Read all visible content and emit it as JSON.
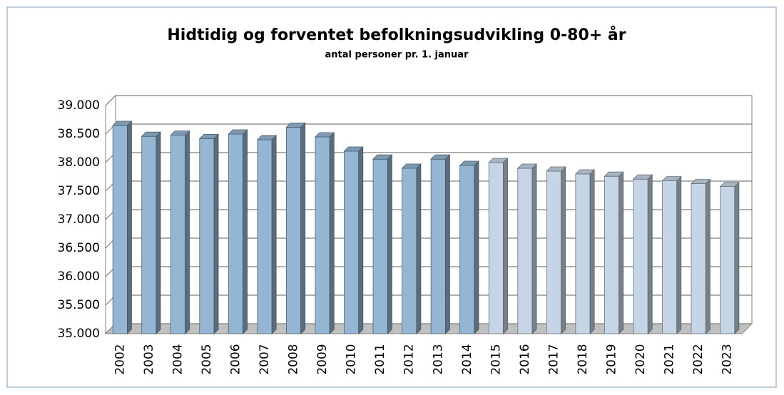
{
  "chart_data": {
    "type": "bar3d",
    "title": "Hidtidig og forventet befolkningsudvikling 0-80+ år",
    "subtitle": "antal personer pr. 1. januar",
    "categories": [
      "2002",
      "2003",
      "2004",
      "2005",
      "2006",
      "2007",
      "2008",
      "2009",
      "2010",
      "2011",
      "2012",
      "2013",
      "2014",
      "2015",
      "2016",
      "2017",
      "2018",
      "2019",
      "2020",
      "2021",
      "2022",
      "2023"
    ],
    "values": [
      38650,
      38460,
      38480,
      38420,
      38500,
      38400,
      38620,
      38450,
      38200,
      38060,
      37900,
      38060,
      37950,
      38000,
      37900,
      37850,
      37800,
      37760,
      37710,
      37680,
      37630,
      37580
    ],
    "colors": [
      "#94b6d2",
      "#94b6d2",
      "#94b6d2",
      "#94b6d2",
      "#94b6d2",
      "#94b6d2",
      "#94b6d2",
      "#94b6d2",
      "#94b6d2",
      "#94b6d2",
      "#94b6d2",
      "#94b6d2",
      "#94b6d2",
      "#c5d5e5",
      "#c5d5e5",
      "#c5d5e5",
      "#c5d5e5",
      "#c5d5e5",
      "#c5d5e5",
      "#c5d5e5",
      "#c5d5e5",
      "#c5d5e5"
    ],
    "ylim": [
      35000,
      39000
    ],
    "yticks": [
      {
        "value": 35000,
        "label": "35.000"
      },
      {
        "value": 35500,
        "label": "35.500"
      },
      {
        "value": 36000,
        "label": "36.000"
      },
      {
        "value": 36500,
        "label": "36.500"
      },
      {
        "value": 37000,
        "label": "37.000"
      },
      {
        "value": 37500,
        "label": "37.500"
      },
      {
        "value": 38000,
        "label": "38.000"
      },
      {
        "value": 38500,
        "label": "38.500"
      },
      {
        "value": 39000,
        "label": "39.000"
      }
    ],
    "grid": true
  }
}
